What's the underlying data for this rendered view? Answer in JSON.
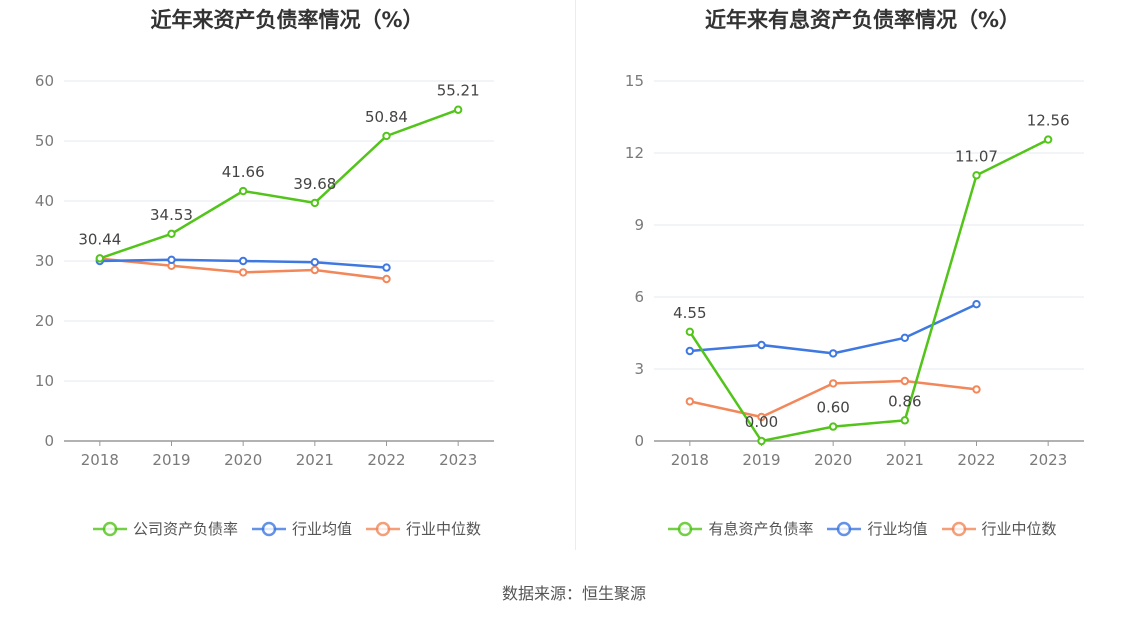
{
  "colors": {
    "company": "#52c41a",
    "industry_avg": "#3f78e0",
    "industry_median": "#f2875a",
    "grid": "#e6e9f0",
    "axis": "#999999"
  },
  "source_text": "数据来源：恒生聚源",
  "chart_data": [
    {
      "type": "line",
      "title": "近年来资产负债率情况（%）",
      "categories": [
        "2018",
        "2019",
        "2020",
        "2021",
        "2022",
        "2023"
      ],
      "ylim": [
        0,
        60
      ],
      "yticks": [
        "0",
        "10",
        "20",
        "30",
        "40",
        "50",
        "60"
      ],
      "series": [
        {
          "name": "公司资产负债率",
          "key": "company",
          "values": [
            30.44,
            34.53,
            41.66,
            39.68,
            50.84,
            55.21
          ],
          "labels": [
            "30.44",
            "34.53",
            "41.66",
            "39.68",
            "50.84",
            "55.21"
          ]
        },
        {
          "name": "行业均值",
          "key": "industry_avg",
          "values": [
            30.0,
            30.2,
            30.0,
            29.8,
            28.9,
            null
          ]
        },
        {
          "name": "行业中位数",
          "key": "industry_median",
          "values": [
            30.4,
            29.2,
            28.1,
            28.5,
            27.0,
            null
          ]
        }
      ]
    },
    {
      "type": "line",
      "title": "近年来有息资产负债率情况（%）",
      "categories": [
        "2018",
        "2019",
        "2020",
        "2021",
        "2022",
        "2023"
      ],
      "ylim": [
        0,
        15
      ],
      "yticks": [
        "0",
        "3",
        "6",
        "9",
        "12",
        "15"
      ],
      "series": [
        {
          "name": "有息资产负债率",
          "key": "company",
          "values": [
            4.55,
            0.0,
            0.6,
            0.86,
            11.07,
            12.56
          ],
          "labels": [
            "4.55",
            "0.00",
            "0.60",
            "0.86",
            "11.07",
            "12.56"
          ]
        },
        {
          "name": "行业均值",
          "key": "industry_avg",
          "values": [
            3.75,
            4.0,
            3.65,
            4.3,
            5.7,
            null
          ]
        },
        {
          "name": "行业中位数",
          "key": "industry_median",
          "values": [
            1.65,
            1.0,
            2.4,
            2.5,
            2.15,
            null
          ]
        }
      ]
    }
  ]
}
